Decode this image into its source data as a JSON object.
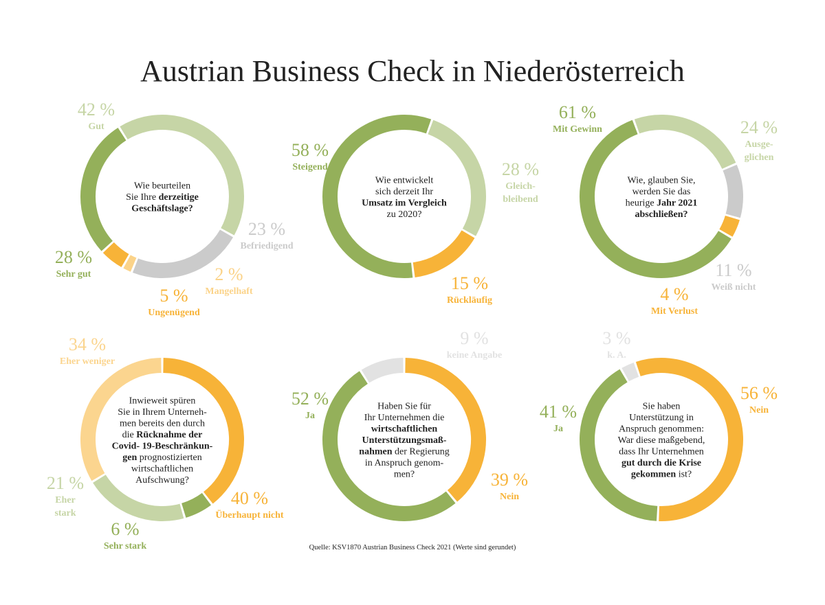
{
  "title": "Austrian Business Check in Niederösterreich",
  "source": "Quelle: KSV1870 Austrian Business Check 2021 (Werte sind gerundet)",
  "colors": {
    "dark_green": "#94b05a",
    "light_green": "#c6d5a6",
    "grey": "#cbcbcb",
    "light_grey": "#e2e2e2",
    "orange": "#f7b338",
    "light_orange": "#fbd389",
    "pale_orange": "#fbd58f",
    "text": "#222222"
  },
  "chart_data": [
    {
      "type": "pie",
      "question": [
        [
          [
            "Wie beurteilen",
            false
          ]
        ],
        [
          [
            "Sie Ihre ",
            false
          ],
          [
            "derzeitige",
            true
          ]
        ],
        [
          [
            "Geschäftslage?",
            true
          ]
        ]
      ],
      "start_angle": 0,
      "categories": [
        "Gut",
        "Befriedigend",
        "Mangelhaft",
        "Ungenügend",
        "Sehr gut"
      ],
      "values": [
        42,
        23,
        2,
        5,
        28
      ],
      "value_labels": [
        "42 %",
        "23 %",
        "2 %",
        "5 %",
        "28 %"
      ],
      "label_lines": [
        [
          "Gut"
        ],
        [
          "Befriedigend"
        ],
        [
          "Mangelhaft"
        ],
        [
          "Ungenügend"
        ],
        [
          "Sehr gut"
        ]
      ],
      "colors": [
        "#c6d5a6",
        "#cbcbcb",
        "#fbd389",
        "#f7b338",
        "#94b05a"
      ],
      "text_colors": [
        "#c6d5a6",
        "#cbcbcb",
        "#fbd389",
        "#f7b338",
        "#94b05a"
      ]
    },
    {
      "type": "pie",
      "question": [
        [
          [
            "Wie entwickelt",
            false
          ]
        ],
        [
          [
            "sich derzeit Ihr",
            false
          ]
        ],
        [
          [
            "Umsatz im Vergleich",
            true
          ]
        ],
        [
          [
            "zu 2020?",
            false
          ]
        ]
      ],
      "start_angle": 0,
      "categories": [
        "Gleichbleibend",
        "Rückläufig",
        "Steigend"
      ],
      "values": [
        28,
        15,
        58
      ],
      "value_labels": [
        "28 %",
        "15 %",
        "58 %"
      ],
      "label_lines": [
        [
          "Gleich-",
          "bleibend"
        ],
        [
          "Rückläufig"
        ],
        [
          "Steigend"
        ]
      ],
      "colors": [
        "#c6d5a6",
        "#f7b338",
        "#94b05a"
      ],
      "text_colors": [
        "#c6d5a6",
        "#f7b338",
        "#94b05a"
      ]
    },
    {
      "type": "pie",
      "question": [
        [
          [
            "Wie, glauben Sie,",
            false
          ]
        ],
        [
          [
            "werden Sie das",
            false
          ]
        ],
        [
          [
            "heurige ",
            false
          ],
          [
            "Jahr 2021",
            true
          ]
        ],
        [
          [
            "abschließen?",
            true
          ]
        ]
      ],
      "start_angle": 0,
      "categories": [
        "Mit Gewinn",
        "Ausgeglichen",
        "Weiß nicht",
        "Mit Verlust"
      ],
      "values": [
        61,
        24,
        11,
        4
      ],
      "order": [
        1,
        2,
        3,
        0
      ],
      "value_labels": [
        "61 %",
        "24 %",
        "11 %",
        "4 %"
      ],
      "label_lines": [
        [
          "Mit Gewinn"
        ],
        [
          "Ausge-",
          "glichen"
        ],
        [
          "Weiß nicht"
        ],
        [
          "Mit Verlust"
        ]
      ],
      "colors": [
        "#94b05a",
        "#c6d5a6",
        "#cbcbcb",
        "#f7b338"
      ],
      "text_colors": [
        "#94b05a",
        "#c6d5a6",
        "#cbcbcb",
        "#f7b338"
      ]
    },
    {
      "type": "pie",
      "question": [
        [
          [
            "Inwieweit spüren",
            false
          ]
        ],
        [
          [
            "Sie in Ihrem Unterneh-",
            false
          ]
        ],
        [
          [
            "men bereits den durch",
            false
          ]
        ],
        [
          [
            "die ",
            false
          ],
          [
            "Rücknahme der",
            true
          ]
        ],
        [
          [
            "Covid- 19-Beschränkun-",
            true
          ]
        ],
        [
          [
            "gen",
            true
          ],
          [
            " prognostizierten",
            false
          ]
        ],
        [
          [
            "wirtschaftlichen",
            false
          ]
        ],
        [
          [
            "Aufschwung?",
            false
          ]
        ]
      ],
      "start_angle": 0,
      "categories": [
        "Überhaupt nicht",
        "Sehr stark",
        "Eher stark",
        "Eher weniger"
      ],
      "values": [
        40,
        6,
        21,
        34
      ],
      "value_labels": [
        "40 %",
        "6 %",
        "21 %",
        "34 %"
      ],
      "label_lines": [
        [
          "Überhaupt nicht"
        ],
        [
          "Sehr stark"
        ],
        [
          "Eher",
          "stark"
        ],
        [
          "Eher weniger"
        ]
      ],
      "colors": [
        "#f7b338",
        "#94b05a",
        "#c6d5a6",
        "#fbd58f"
      ],
      "text_colors": [
        "#f7b338",
        "#94b05a",
        "#c6d5a6",
        "#fbd58f"
      ]
    },
    {
      "type": "pie",
      "question": [
        [
          [
            "Haben Sie für",
            false
          ]
        ],
        [
          [
            "Ihr Unternehmen die",
            false
          ]
        ],
        [
          [
            "wirtschaftlichen",
            true
          ]
        ],
        [
          [
            "Unterstützungsmaß-",
            true
          ]
        ],
        [
          [
            "nahmen",
            true
          ],
          [
            " der Regierung",
            false
          ]
        ],
        [
          [
            "in Anspruch genom-",
            false
          ]
        ],
        [
          [
            "men?",
            false
          ]
        ]
      ],
      "start_angle": 0,
      "categories": [
        "Nein",
        "Ja",
        "keine Angabe"
      ],
      "values": [
        39,
        52,
        9
      ],
      "value_labels": [
        "39 %",
        "52 %",
        "9 %"
      ],
      "label_lines": [
        [
          "Nein"
        ],
        [
          "Ja"
        ],
        [
          "keine Angabe"
        ]
      ],
      "colors": [
        "#f7b338",
        "#94b05a",
        "#e2e2e2"
      ],
      "text_colors": [
        "#f7b338",
        "#94b05a",
        "#e2e2e2"
      ]
    },
    {
      "type": "pie",
      "question": [
        [
          [
            "Sie haben",
            false
          ]
        ],
        [
          [
            "Unterstützung in",
            false
          ]
        ],
        [
          [
            "Anspruch genommen:",
            false
          ]
        ],
        [
          [
            "War diese maßgebend,",
            false
          ]
        ],
        [
          [
            "dass Ihr Unternehmen",
            false
          ]
        ],
        [
          [
            "gut durch die Krise",
            true
          ]
        ],
        [
          [
            "gekommen",
            true
          ],
          [
            " ist?",
            false
          ]
        ]
      ],
      "start_angle": 0,
      "categories": [
        "Nein",
        "Ja",
        "k. A."
      ],
      "values": [
        56,
        41,
        3
      ],
      "value_labels": [
        "56 %",
        "41 %",
        "3 %"
      ],
      "label_lines": [
        [
          "Nein"
        ],
        [
          "Ja"
        ],
        [
          "k. A."
        ]
      ],
      "colors": [
        "#f7b338",
        "#94b05a",
        "#e2e2e2"
      ],
      "text_colors": [
        "#f7b338",
        "#94b05a",
        "#e2e2e2"
      ]
    }
  ]
}
